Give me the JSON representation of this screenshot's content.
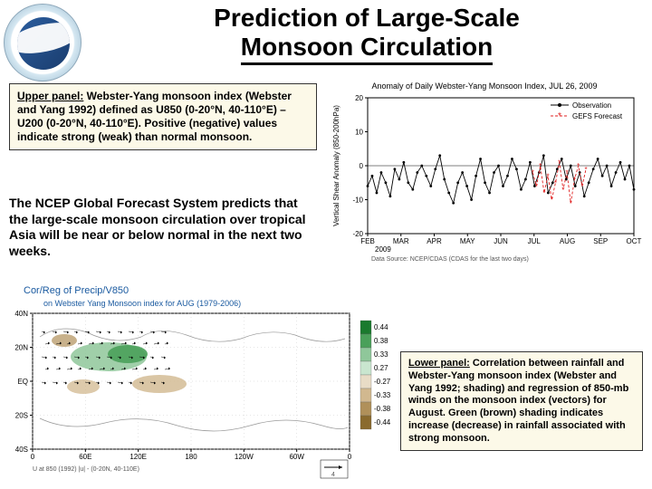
{
  "title_line1": "Prediction of Large-Scale",
  "title_line2": "Monsoon Circulation",
  "logo": {
    "agency": "NOAA",
    "dept": "DEPARTMENT OF COMMERCE"
  },
  "upper_caption": {
    "label": "Upper panel:",
    "text": " Webster-Yang monsoon index (Webster and Yang 1992) defined as U850 (0-20°N, 40-110°E) – U200 (0-20°N, 40-110°E). Positive (negative) values indicate strong (weak) than normal monsoon."
  },
  "ncep_text": "The NCEP Global Forecast System predicts that the large-scale monsoon circulation over tropical Asia will be near or below normal in the next two weeks.",
  "lower_caption": {
    "label": "Lower panel:",
    "text": " Correlation between rainfall and Webster-Yang monsoon index (Webster and Yang 1992; shading) and regression of 850-mb winds on the monsoon index (vectors) for August. Green (brown) shading indicates increase (decrease) in rainfall associated with strong monsoon."
  },
  "timeseries_chart": {
    "type": "line",
    "title": "Anomaly of Daily Webster-Yang Monsoon Index, JUL 26, 2009",
    "ylabel": "Vertical Shear Anomaly (850-200hPa)",
    "ylim": [
      -20,
      20
    ],
    "ytick_step": 10,
    "xticks": [
      "FEB",
      "MAR",
      "APR",
      "MAY",
      "JUN",
      "JUL",
      "AUG",
      "SEP",
      "OCT"
    ],
    "xsub": "2009",
    "legend": [
      {
        "label": "Observation",
        "color": "#000000",
        "marker": "dot",
        "line": "solid"
      },
      {
        "label": "GEFS Forecast",
        "color": "#e02020",
        "marker": "star",
        "line": "dashed"
      }
    ],
    "series_obs": {
      "color": "#000000",
      "values": [
        -6,
        -3,
        -8,
        -2,
        -5,
        -9,
        -1,
        -4,
        1,
        -5,
        -7,
        -2,
        0,
        -3,
        -6,
        -1,
        3,
        -4,
        -8,
        -11,
        -5,
        -2,
        -6,
        -10,
        -3,
        2,
        -5,
        -8,
        -2,
        0,
        -6,
        -3,
        2,
        -1,
        -7,
        -4,
        1,
        -6,
        -2,
        3,
        -8,
        -5,
        -1,
        2,
        -4,
        0,
        -6,
        -2,
        -9,
        -5,
        -1,
        2,
        -3,
        0,
        -6,
        -2,
        1,
        -4,
        0,
        -7
      ]
    },
    "series_fcst": {
      "color": "#e02020",
      "x_start_fraction": 0.62,
      "values": [
        -2,
        -6,
        0,
        -8,
        -3,
        -10,
        -5,
        1,
        -7,
        -2,
        -11,
        -4,
        0,
        -6,
        -1
      ]
    },
    "source_note": "Data Source: NCEP/CDAS (CDAS for the last two days)",
    "title_fontsize": 9,
    "label_fontsize": 8,
    "background_color": "#ffffff",
    "grid": false
  },
  "map_chart": {
    "type": "map-contour",
    "title": "Cor/Reg of Precip/V850",
    "subtitle": "on Webster Yang Monsoon index for AUG (1979-2006)",
    "xticks": [
      "0",
      "60E",
      "120E",
      "180",
      "120W",
      "60W",
      "0"
    ],
    "yticks": [
      "40N",
      "20N",
      "EQ",
      "20S",
      "40S"
    ],
    "vector_key": "U at 850 (1992) |u| - (0-20N, 40-110E)",
    "vector_scale": "4",
    "colorbar": {
      "values": [
        0.44,
        0.38,
        0.33,
        0.27,
        -0.27,
        -0.33,
        -0.38,
        -0.44
      ],
      "colors": [
        "#1a7a2e",
        "#4aa05a",
        "#8fc79a",
        "#c9e6cf",
        "#e8dcc6",
        "#d1b88f",
        "#b0905a",
        "#8a6a2e"
      ]
    },
    "green_region": "South/Southeast Asia band 10-25N, 60-130E",
    "brown_regions": "Equatorial western Pacific and scattered",
    "background_color": "#ffffff",
    "title_fontsize": 11,
    "label_fontsize": 8
  }
}
